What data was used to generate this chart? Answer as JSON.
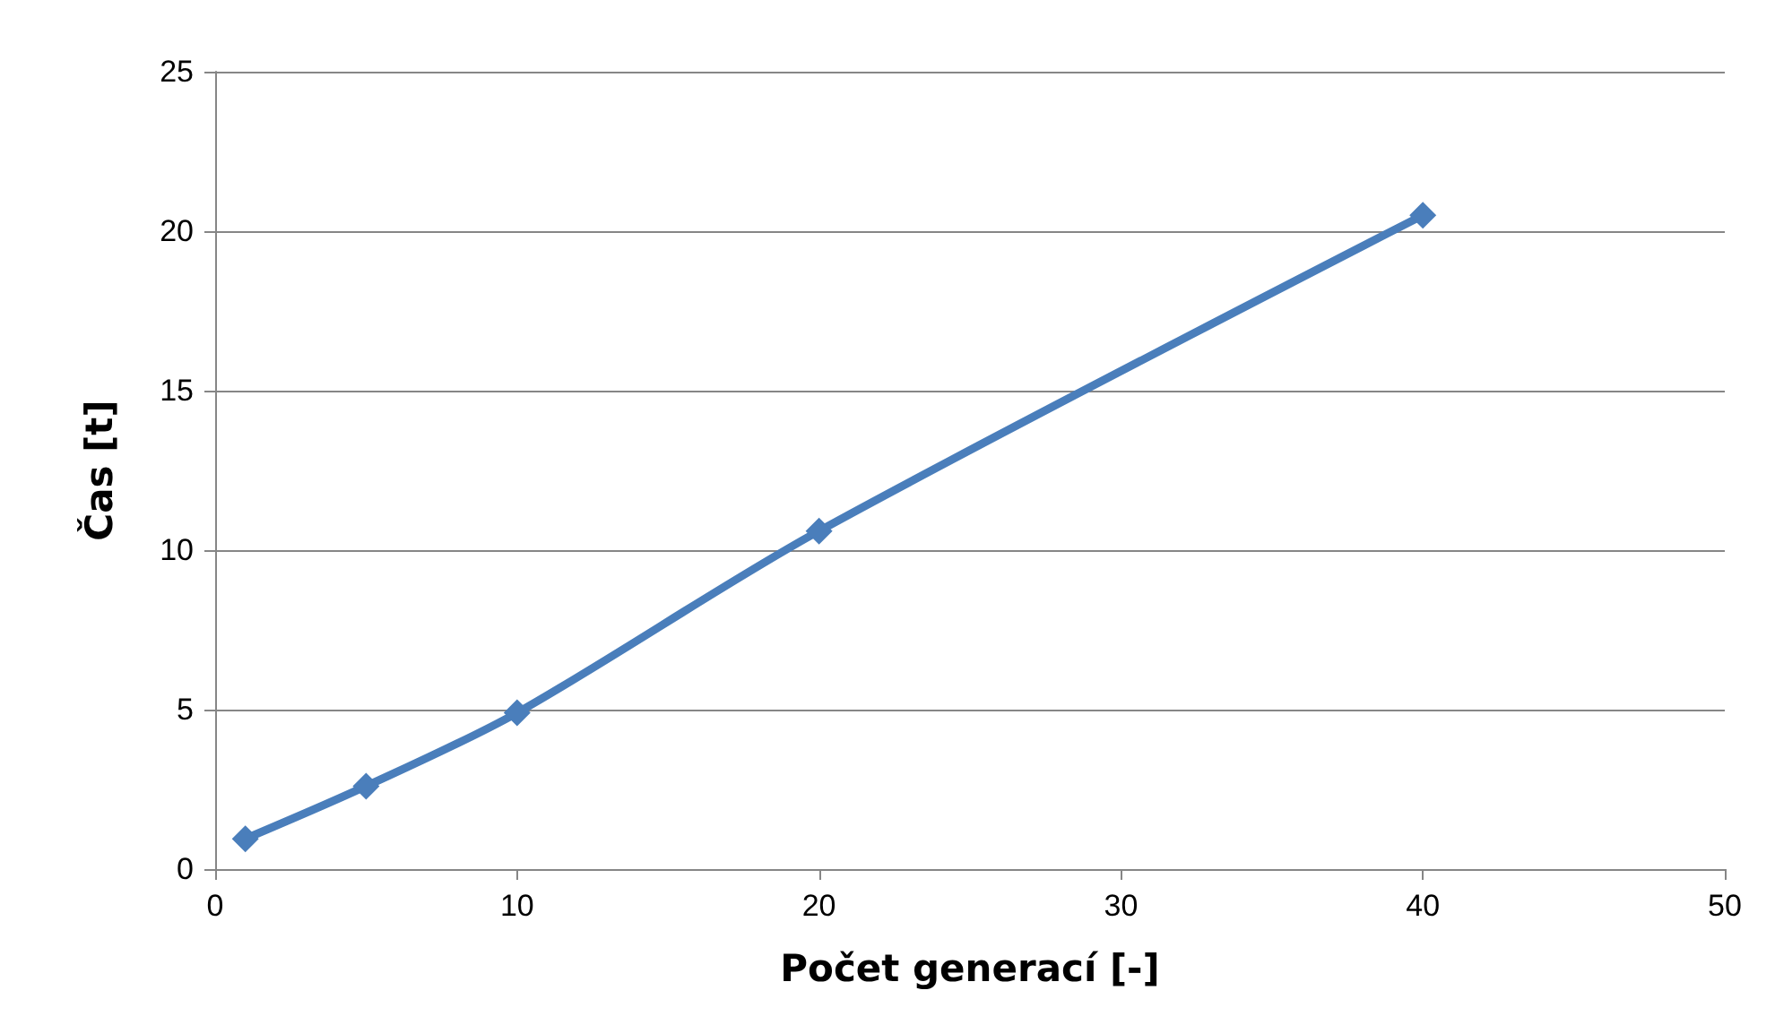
{
  "chart_data": {
    "type": "line",
    "xlabel": "Počet generací [-]",
    "ylabel": "Čas [t]",
    "x": [
      1,
      5,
      10,
      20,
      40
    ],
    "series": [
      {
        "color": "#4a7ebb",
        "values": [
          0.95,
          2.6,
          4.9,
          10.6,
          20.5
        ]
      }
    ],
    "xlim": [
      0,
      50
    ],
    "xticks": [
      0,
      10,
      20,
      30,
      40,
      50
    ],
    "ylim": [
      0,
      25
    ],
    "yticks": [
      0,
      5,
      10,
      15,
      20,
      25
    ],
    "grid": "y",
    "marker": "diamond",
    "line_style": "solid"
  }
}
